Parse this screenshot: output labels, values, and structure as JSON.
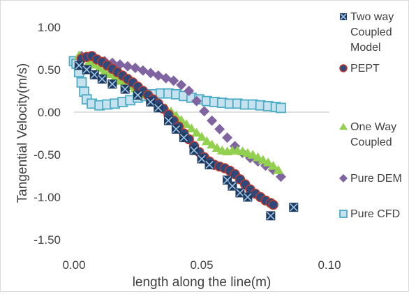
{
  "chart_data": {
    "type": "scatter",
    "title": "",
    "xlabel": "length along the line(m)",
    "ylabel": "Tangential Velocity(m/s)",
    "xlim": [
      0.0,
      0.1
    ],
    "ylim": [
      -1.5,
      1.0
    ],
    "x_ticks": [
      "0.00",
      "0.05",
      "0.10"
    ],
    "y_ticks": [
      "1.00",
      "0.50",
      "0.00",
      "-0.50",
      "-1.00",
      "-1.50"
    ],
    "grid": false,
    "legend_position": "right",
    "series": [
      {
        "name": "Two way Coupled Model",
        "legend_lines": [
          "Two way",
          "Coupled",
          "Model"
        ],
        "marker": "square-x",
        "color": "#1f3a5f",
        "points": [
          [
            0.002,
            0.55
          ],
          [
            0.005,
            0.5
          ],
          [
            0.008,
            0.44
          ],
          [
            0.011,
            0.39
          ],
          [
            0.015,
            0.33
          ],
          [
            0.02,
            0.27
          ],
          [
            0.025,
            0.2
          ],
          [
            0.03,
            0.12
          ],
          [
            0.033,
            0.05
          ],
          [
            0.037,
            -0.1
          ],
          [
            0.04,
            -0.2
          ],
          [
            0.043,
            -0.3
          ],
          [
            0.047,
            -0.45
          ],
          [
            0.05,
            -0.55
          ],
          [
            0.053,
            -0.62
          ],
          [
            0.06,
            -0.8
          ],
          [
            0.062,
            -0.87
          ],
          [
            0.065,
            -0.95
          ],
          [
            0.068,
            -1.0
          ],
          [
            0.077,
            -1.22
          ],
          [
            0.086,
            -1.12
          ]
        ]
      },
      {
        "name": "PEPT",
        "legend_lines": [
          "PEPT"
        ],
        "marker": "circle",
        "color": "#2e4a7d",
        "stroke": "#c0392b",
        "points": [
          [
            0.003,
            0.63
          ],
          [
            0.005,
            0.65
          ],
          [
            0.007,
            0.66
          ],
          [
            0.009,
            0.62
          ],
          [
            0.011,
            0.59
          ],
          [
            0.013,
            0.55
          ],
          [
            0.015,
            0.51
          ],
          [
            0.017,
            0.47
          ],
          [
            0.019,
            0.43
          ],
          [
            0.021,
            0.39
          ],
          [
            0.023,
            0.35
          ],
          [
            0.025,
            0.3
          ],
          [
            0.027,
            0.25
          ],
          [
            0.029,
            0.2
          ],
          [
            0.031,
            0.15
          ],
          [
            0.033,
            0.1
          ],
          [
            0.035,
            0.04
          ],
          [
            0.037,
            -0.03
          ],
          [
            0.039,
            -0.1
          ],
          [
            0.041,
            -0.17
          ],
          [
            0.043,
            -0.25
          ],
          [
            0.045,
            -0.32
          ],
          [
            0.047,
            -0.4
          ],
          [
            0.049,
            -0.47
          ],
          [
            0.051,
            -0.53
          ],
          [
            0.053,
            -0.58
          ],
          [
            0.055,
            -0.62
          ],
          [
            0.057,
            -0.64
          ],
          [
            0.059,
            -0.66
          ],
          [
            0.061,
            -0.69
          ],
          [
            0.063,
            -0.73
          ],
          [
            0.065,
            -0.79
          ],
          [
            0.067,
            -0.85
          ],
          [
            0.069,
            -0.91
          ],
          [
            0.071,
            -0.96
          ],
          [
            0.073,
            -1.0
          ],
          [
            0.075,
            -1.04
          ],
          [
            0.077,
            -1.07
          ],
          [
            0.078,
            -1.09
          ]
        ]
      },
      {
        "name": "One Way Coupled",
        "legend_lines": [
          "One Way",
          "Coupled"
        ],
        "marker": "triangle",
        "color": "#92d050",
        "points": [
          [
            0.002,
            0.67
          ],
          [
            0.004,
            0.64
          ],
          [
            0.006,
            0.6
          ],
          [
            0.008,
            0.56
          ],
          [
            0.01,
            0.52
          ],
          [
            0.012,
            0.48
          ],
          [
            0.014,
            0.45
          ],
          [
            0.016,
            0.41
          ],
          [
            0.018,
            0.37
          ],
          [
            0.02,
            0.34
          ],
          [
            0.022,
            0.31
          ],
          [
            0.024,
            0.28
          ],
          [
            0.026,
            0.25
          ],
          [
            0.028,
            0.21
          ],
          [
            0.03,
            0.17
          ],
          [
            0.032,
            0.13
          ],
          [
            0.034,
            0.09
          ],
          [
            0.036,
            0.05
          ],
          [
            0.038,
            0.01
          ],
          [
            0.04,
            -0.04
          ],
          [
            0.042,
            -0.09
          ],
          [
            0.044,
            -0.14
          ],
          [
            0.046,
            -0.19
          ],
          [
            0.048,
            -0.24
          ],
          [
            0.05,
            -0.29
          ],
          [
            0.052,
            -0.34
          ],
          [
            0.054,
            -0.38
          ],
          [
            0.056,
            -0.42
          ],
          [
            0.058,
            -0.45
          ],
          [
            0.06,
            -0.46
          ],
          [
            0.062,
            -0.45
          ],
          [
            0.064,
            -0.45
          ],
          [
            0.066,
            -0.46
          ],
          [
            0.068,
            -0.48
          ],
          [
            0.07,
            -0.5
          ],
          [
            0.072,
            -0.53
          ],
          [
            0.074,
            -0.56
          ],
          [
            0.076,
            -0.59
          ],
          [
            0.078,
            -0.63
          ],
          [
            0.08,
            -0.68
          ]
        ]
      },
      {
        "name": "Pure DEM",
        "legend_lines": [
          "Pure DEM"
        ],
        "marker": "diamond",
        "color": "#8064a2",
        "points": [
          [
            0.003,
            0.66
          ],
          [
            0.006,
            0.65
          ],
          [
            0.009,
            0.62
          ],
          [
            0.012,
            0.6
          ],
          [
            0.015,
            0.58
          ],
          [
            0.018,
            0.56
          ],
          [
            0.021,
            0.54
          ],
          [
            0.024,
            0.52
          ],
          [
            0.027,
            0.49
          ],
          [
            0.03,
            0.46
          ],
          [
            0.033,
            0.43
          ],
          [
            0.036,
            0.4
          ],
          [
            0.039,
            0.37
          ],
          [
            0.042,
            0.32
          ],
          [
            0.045,
            0.25
          ],
          [
            0.048,
            0.13
          ],
          [
            0.051,
            0.01
          ],
          [
            0.054,
            -0.1
          ],
          [
            0.057,
            -0.2
          ],
          [
            0.06,
            -0.3
          ],
          [
            0.063,
            -0.4
          ],
          [
            0.066,
            -0.48
          ],
          [
            0.069,
            -0.54
          ],
          [
            0.072,
            -0.58
          ],
          [
            0.075,
            -0.63
          ],
          [
            0.078,
            -0.68
          ],
          [
            0.081,
            -0.76
          ]
        ]
      },
      {
        "name": "Pure CFD",
        "legend_lines": [
          "Pure CFD"
        ],
        "marker": "square",
        "color": "#c6e2ef",
        "stroke": "#4bacc6",
        "points": [
          [
            0.0,
            0.6
          ],
          [
            0.001,
            0.57
          ],
          [
            0.002,
            0.47
          ],
          [
            0.003,
            0.35
          ],
          [
            0.004,
            0.24
          ],
          [
            0.005,
            0.15
          ],
          [
            0.007,
            0.1
          ],
          [
            0.01,
            0.08
          ],
          [
            0.013,
            0.09
          ],
          [
            0.016,
            0.1
          ],
          [
            0.019,
            0.12
          ],
          [
            0.022,
            0.14
          ],
          [
            0.025,
            0.17
          ],
          [
            0.028,
            0.19
          ],
          [
            0.031,
            0.21
          ],
          [
            0.034,
            0.22
          ],
          [
            0.037,
            0.22
          ],
          [
            0.04,
            0.21
          ],
          [
            0.043,
            0.19
          ],
          [
            0.046,
            0.17
          ],
          [
            0.049,
            0.15
          ],
          [
            0.052,
            0.13
          ],
          [
            0.055,
            0.12
          ],
          [
            0.058,
            0.11
          ],
          [
            0.061,
            0.1
          ],
          [
            0.064,
            0.1
          ],
          [
            0.067,
            0.09
          ],
          [
            0.07,
            0.09
          ],
          [
            0.073,
            0.08
          ],
          [
            0.076,
            0.07
          ],
          [
            0.079,
            0.06
          ],
          [
            0.081,
            0.05
          ]
        ]
      }
    ]
  }
}
